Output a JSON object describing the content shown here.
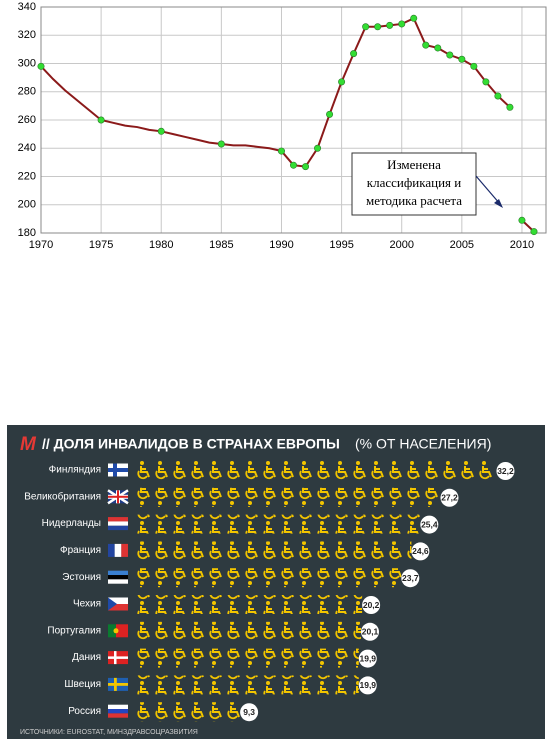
{
  "chart_data": [
    {
      "type": "line",
      "x": [
        1970,
        1971,
        1972,
        1973,
        1974,
        1975,
        1976,
        1977,
        1978,
        1979,
        1980,
        1981,
        1982,
        1983,
        1984,
        1985,
        1986,
        1987,
        1988,
        1989,
        1990,
        1991,
        1992,
        1993,
        1994,
        1995,
        1996,
        1997,
        1998,
        1999,
        2000,
        2001,
        2002,
        2003,
        2004,
        2005,
        2006,
        2007,
        2008,
        2009,
        2010,
        2011
      ],
      "series": [
        {
          "color": "#8b1a1a",
          "values": [
            298,
            289,
            281,
            274,
            267,
            260,
            258,
            256,
            255,
            253,
            252,
            250,
            248,
            246,
            244,
            243,
            242,
            242,
            241,
            240,
            238,
            228,
            227,
            240,
            264,
            287,
            307,
            326,
            326,
            327,
            328,
            332,
            313,
            311,
            306,
            303,
            298,
            287,
            277,
            269,
            null,
            null
          ]
        },
        {
          "color": "#8b1a1a",
          "values": [
            null,
            null,
            null,
            null,
            null,
            null,
            null,
            null,
            null,
            null,
            null,
            null,
            null,
            null,
            null,
            null,
            null,
            null,
            null,
            null,
            null,
            null,
            null,
            null,
            null,
            null,
            null,
            null,
            null,
            null,
            null,
            null,
            null,
            null,
            null,
            null,
            null,
            null,
            null,
            null,
            189,
            181
          ]
        },
        {
          "color": "#33dd33",
          "marker": true,
          "values": [
            298,
            null,
            null,
            null,
            null,
            260,
            null,
            null,
            null,
            null,
            252,
            null,
            null,
            null,
            null,
            243,
            null,
            null,
            null,
            null,
            238,
            228,
            227,
            240,
            264,
            287,
            307,
            326,
            326,
            327,
            328,
            332,
            313,
            311,
            306,
            303,
            298,
            287,
            277,
            269,
            189,
            181
          ]
        }
      ],
      "xlim": [
        1970,
        2012
      ],
      "ylim": [
        180,
        340
      ],
      "xticks": [
        1970,
        1975,
        1980,
        1985,
        1990,
        1995,
        2000,
        2005,
        2010
      ],
      "yticks": [
        180,
        200,
        220,
        240,
        260,
        280,
        300,
        320,
        340
      ],
      "grid": true,
      "annotation": [
        "Изменена",
        "классификация и",
        "методика расчета"
      ]
    },
    {
      "type": "pictogram",
      "logo": "M",
      "title": "// ДОЛЯ ИНВАЛИДОВ В СТРАНАХ ЕВРОПЫ",
      "subtitle": "(% ОТ НАСЕЛЕНИЯ)",
      "categories": [
        "Финляндия",
        "Великобритания",
        "Нидерланды",
        "Франция",
        "Эстония",
        "Чехия",
        "Португалия",
        "Дания",
        "Швеция",
        "Россия"
      ],
      "values": [
        32.2,
        27.2,
        25.4,
        24.6,
        23.7,
        20.2,
        20.1,
        19.9,
        19.9,
        9.3
      ],
      "value_labels": [
        "32,2",
        "27,2",
        "25,4",
        "24,6",
        "23,7",
        "20,2",
        "20,1",
        "19,9",
        "19,9",
        "9,3"
      ],
      "color": "#f2c500",
      "xlim": [
        0,
        36
      ],
      "source": "ИСТОЧНИКИ: EUROSTAT, МИНЗДРАВСОЦРАЗВИТИЯ"
    }
  ]
}
